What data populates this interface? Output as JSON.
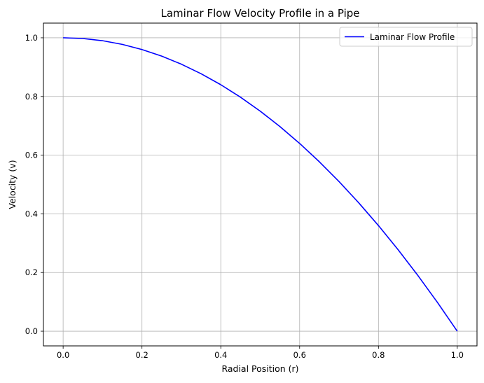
{
  "chart_data": {
    "type": "line",
    "title": "Laminar Flow Velocity Profile in a Pipe",
    "xlabel": "Radial Position (r)",
    "ylabel": "Velocity (v)",
    "xlim": [
      -0.05,
      1.05
    ],
    "ylim": [
      -0.05,
      1.05
    ],
    "xticks": [
      0.0,
      0.2,
      0.4,
      0.6,
      0.8,
      1.0
    ],
    "yticks": [
      0.0,
      0.2,
      0.4,
      0.6,
      0.8,
      1.0
    ],
    "xtick_labels": [
      "0.0",
      "0.2",
      "0.4",
      "0.6",
      "0.8",
      "1.0"
    ],
    "ytick_labels": [
      "0.0",
      "0.2",
      "0.4",
      "0.6",
      "0.8",
      "1.0"
    ],
    "grid": true,
    "legend_position": "top-right",
    "series": [
      {
        "name": "Laminar Flow Profile",
        "color": "#0000ff",
        "x": [
          0.0,
          0.05,
          0.1,
          0.15,
          0.2,
          0.25,
          0.3,
          0.35,
          0.4,
          0.45,
          0.5,
          0.55,
          0.6,
          0.65,
          0.7,
          0.75,
          0.8,
          0.85,
          0.9,
          0.95,
          1.0
        ],
        "y": [
          1.0,
          0.9975,
          0.99,
          0.9775,
          0.96,
          0.9375,
          0.91,
          0.8775,
          0.84,
          0.7975,
          0.75,
          0.6975,
          0.64,
          0.5775,
          0.51,
          0.4375,
          0.36,
          0.2775,
          0.19,
          0.0975,
          0.0
        ]
      }
    ]
  }
}
